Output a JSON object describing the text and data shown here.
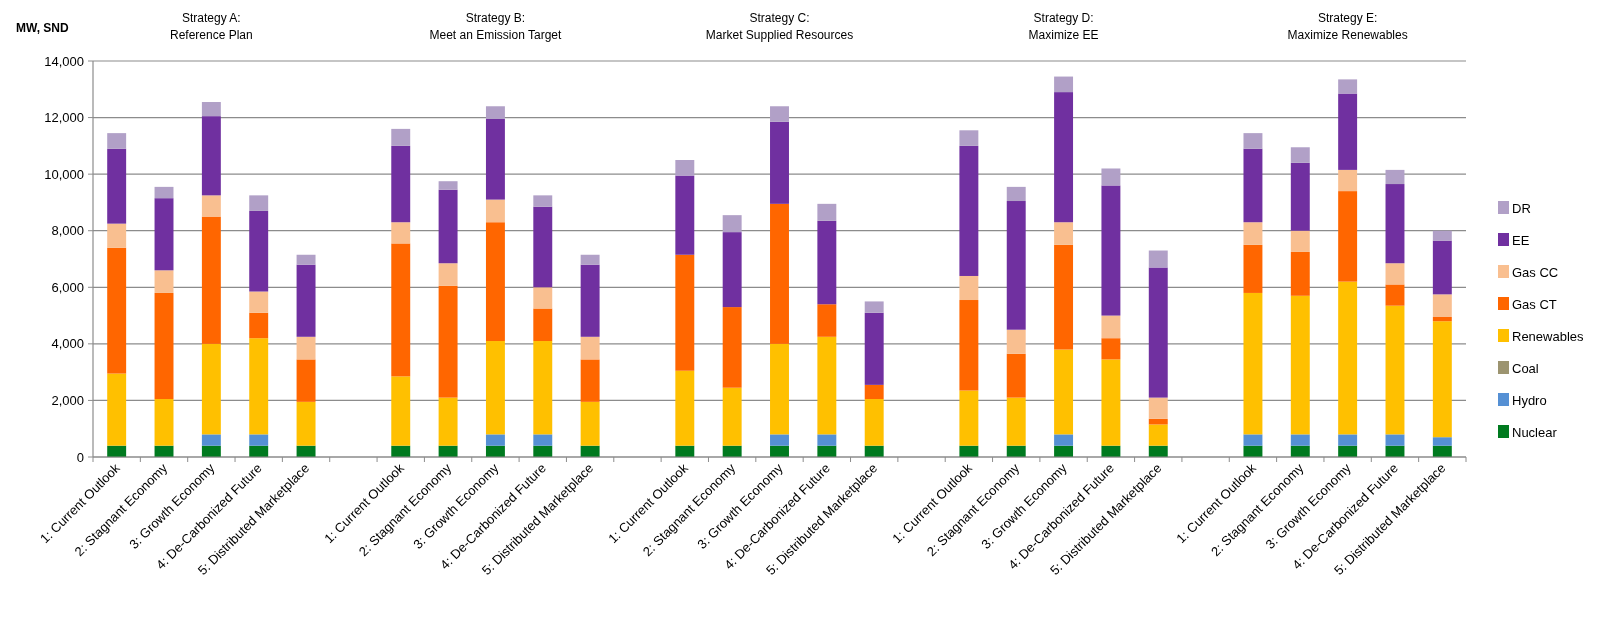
{
  "chart_data": {
    "type": "bar",
    "stacked": true,
    "ylabel": "MW, SND",
    "grid": "y",
    "legend": "right",
    "categories": [
      "1: Current Outlook",
      "2: Stagnant Economy",
      "3: Growth Economy",
      "4: De-Carbonized Future",
      "5: Distributed Marketplace",
      null,
      "1: Current Outlook",
      "2: Stagnant Economy",
      "3: Growth Economy",
      "4: De-Carbonized Future",
      "5: Distributed Marketplace",
      null,
      "1: Current Outlook",
      "2: Stagnant Economy",
      "3: Growth Economy",
      "4: De-Carbonized Future",
      "5: Distributed Marketplace",
      null,
      "1: Current Outlook",
      "2: Stagnant Economy",
      "3: Growth Economy",
      "4: De-Carbonized Future",
      "5: Distributed Marketplace",
      null,
      "1: Current Outlook",
      "2: Stagnant Economy",
      "3: Growth Economy",
      "4: De-Carbonized Future",
      "5: Distributed Marketplace"
    ],
    "ylim": [
      0,
      14000
    ],
    "yticks": [
      {
        "value": 0,
        "label": "0"
      },
      {
        "value": 2000,
        "label": "2,000"
      },
      {
        "value": 4000,
        "label": "4,000"
      },
      {
        "value": 6000,
        "label": "6,000"
      },
      {
        "value": 8000,
        "label": "8,000"
      },
      {
        "value": 10000,
        "label": "10,000"
      },
      {
        "value": 12000,
        "label": "12,000"
      },
      {
        "value": 14000,
        "label": "14,000"
      }
    ],
    "annotations": [
      "Strategy A:\nReference Plan",
      "Strategy B:\nMeet an Emission Target",
      "Strategy C:\nMarket Supplied Resources",
      "Strategy D:\nMaximize  EE",
      "Strategy E:\nMaximize  Renewables"
    ],
    "series": [
      {
        "name": "Nuclear",
        "color": "#007a1f",
        "values": [
          400,
          400,
          400,
          400,
          400,
          null,
          400,
          400,
          400,
          400,
          400,
          null,
          400,
          400,
          400,
          400,
          400,
          null,
          400,
          400,
          400,
          400,
          400,
          null,
          400,
          400,
          400,
          400,
          400
        ]
      },
      {
        "name": "Hydro",
        "color": "#5590d4",
        "values": [
          0,
          0,
          400,
          400,
          0,
          null,
          0,
          0,
          400,
          400,
          0,
          null,
          0,
          0,
          400,
          400,
          0,
          null,
          0,
          0,
          400,
          0,
          0,
          null,
          400,
          400,
          400,
          400,
          300
        ]
      },
      {
        "name": "Coal",
        "color": "#9c9470",
        "values": [
          0,
          0,
          0,
          0,
          0,
          null,
          0,
          0,
          0,
          0,
          0,
          null,
          0,
          0,
          0,
          0,
          0,
          null,
          0,
          0,
          0,
          0,
          0,
          null,
          0,
          0,
          0,
          0,
          0
        ]
      },
      {
        "name": "Renewables",
        "color": "#ffc000",
        "values": [
          2550,
          1650,
          3200,
          3400,
          1550,
          null,
          2450,
          1700,
          3300,
          3300,
          1550,
          null,
          2650,
          2050,
          3200,
          3450,
          1650,
          null,
          1950,
          1700,
          3000,
          3050,
          750,
          null,
          5000,
          4900,
          5400,
          4550,
          4100
        ]
      },
      {
        "name": "Gas CT",
        "color": "#ff6600",
        "values": [
          4450,
          3750,
          4500,
          900,
          1500,
          null,
          4700,
          3950,
          4200,
          1150,
          1500,
          null,
          4100,
          2850,
          4950,
          1150,
          500,
          null,
          3200,
          1550,
          3700,
          750,
          200,
          null,
          1700,
          1550,
          3200,
          750,
          150
        ]
      },
      {
        "name": "Gas CC",
        "color": "#f9bf90",
        "values": [
          850,
          800,
          750,
          750,
          800,
          null,
          750,
          800,
          800,
          750,
          800,
          null,
          0,
          0,
          0,
          0,
          0,
          null,
          850,
          850,
          800,
          800,
          750,
          null,
          800,
          750,
          750,
          750,
          800
        ]
      },
      {
        "name": "EE",
        "color": "#7030a0",
        "values": [
          2650,
          2550,
          2800,
          2850,
          2550,
          null,
          2700,
          2600,
          2850,
          2850,
          2550,
          null,
          2800,
          2650,
          2900,
          2950,
          2550,
          null,
          4600,
          4550,
          4600,
          4600,
          4600,
          null,
          2600,
          2400,
          2700,
          2800,
          1900
        ]
      },
      {
        "name": "DR",
        "color": "#b1a0c7",
        "values": [
          550,
          400,
          500,
          550,
          350,
          null,
          600,
          300,
          450,
          400,
          350,
          null,
          550,
          600,
          550,
          600,
          400,
          null,
          550,
          500,
          550,
          600,
          600,
          null,
          550,
          550,
          500,
          500,
          350
        ]
      }
    ]
  }
}
